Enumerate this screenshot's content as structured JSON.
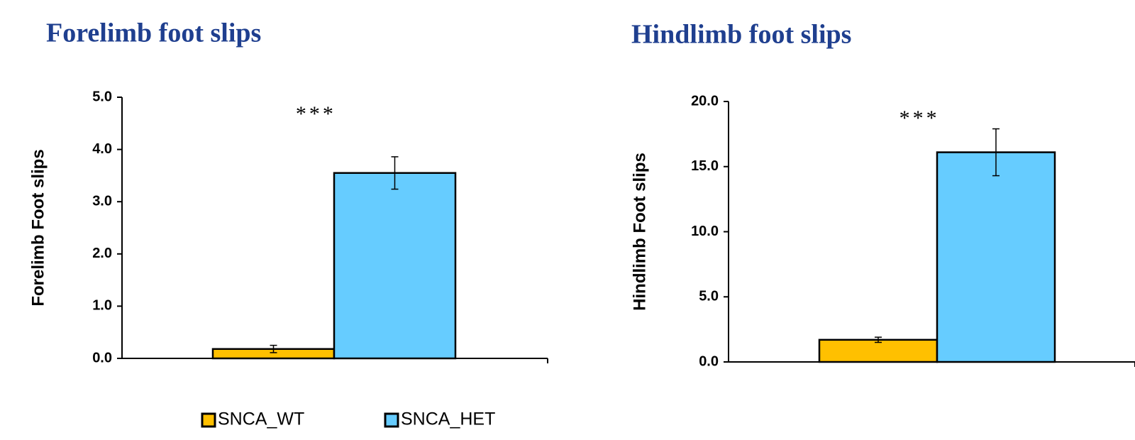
{
  "chart_data": [
    {
      "type": "bar",
      "title": "Forelimb foot slips",
      "y_label": "Forelimb Foot slips",
      "categories": [
        null
      ],
      "series": [
        {
          "name": "SNCA_WT",
          "color": "#ffc000",
          "values": [
            0.18
          ],
          "errors": [
            0.07
          ]
        },
        {
          "name": "SNCA_HET",
          "color": "#66ccff",
          "values": [
            3.55
          ],
          "errors": [
            0.31
          ]
        }
      ],
      "ylim": [
        0,
        5
      ],
      "yticks": [
        {
          "value": 0,
          "label": "0.0"
        },
        {
          "value": 1,
          "label": "1.0"
        },
        {
          "value": 2,
          "label": "2.0"
        },
        {
          "value": 3,
          "label": "3.0"
        },
        {
          "value": 4,
          "label": "4.0"
        },
        {
          "value": 5,
          "label": "5.0"
        }
      ],
      "annotation": "***",
      "legend": "bottom"
    },
    {
      "type": "bar",
      "title": "Hindlimb foot slips",
      "y_label": "Hindlimb Foot slips",
      "categories": [
        null
      ],
      "series": [
        {
          "color": "#ffc000",
          "values": [
            1.7
          ],
          "errors": [
            0.2
          ]
        },
        {
          "color": "#66ccff",
          "values": [
            16.1
          ],
          "errors": [
            1.8
          ]
        }
      ],
      "ylim": [
        0,
        20
      ],
      "yticks": [
        {
          "value": 0,
          "label": "0.0"
        },
        {
          "value": 5,
          "label": "5.0"
        },
        {
          "value": 10,
          "label": "10.0"
        },
        {
          "value": 15,
          "label": "15.0"
        },
        {
          "value": 20,
          "label": "20.0"
        }
      ],
      "annotation": "***"
    }
  ]
}
